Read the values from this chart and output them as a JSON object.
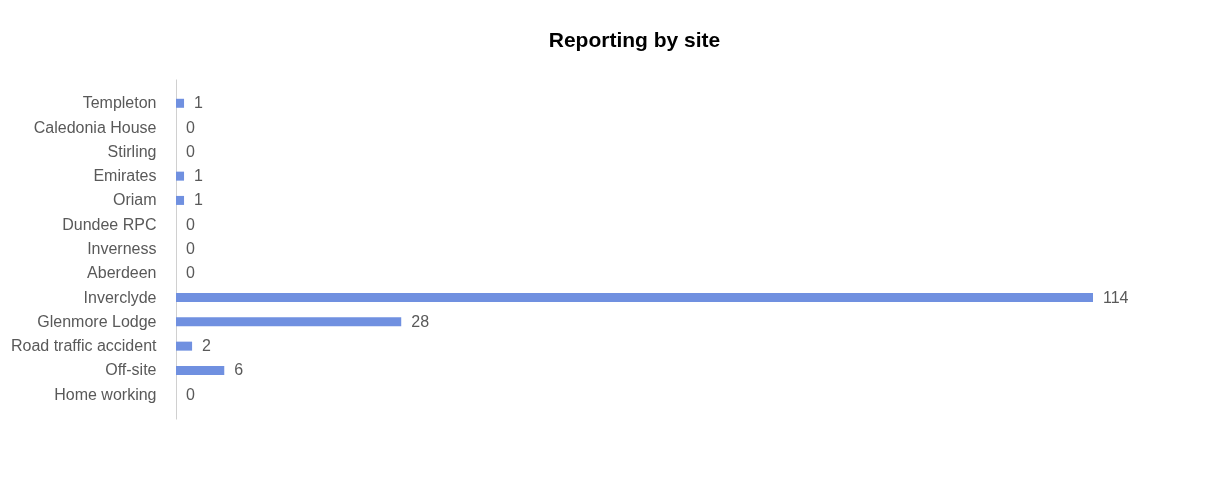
{
  "chart_data": {
    "type": "bar",
    "orientation": "horizontal",
    "title": "Reporting by site",
    "categories": [
      "Templeton",
      "Caledonia House",
      "Stirling",
      "Emirates",
      "Oriam",
      "Dundee RPC",
      "Inverness",
      "Aberdeen",
      "Inverclyde",
      "Glenmore Lodge",
      "Road traffic accident",
      "Off-site",
      "Home working"
    ],
    "values": [
      1,
      0,
      0,
      1,
      1,
      0,
      0,
      0,
      114,
      28,
      2,
      6,
      0
    ],
    "color": "#7090e0",
    "data_labels": true
  }
}
